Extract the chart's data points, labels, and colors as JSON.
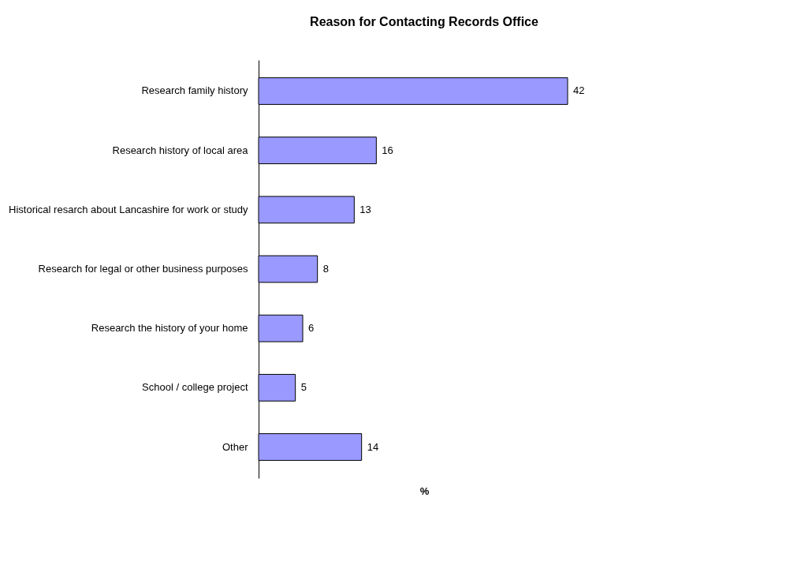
{
  "chart_data": {
    "type": "bar",
    "orientation": "horizontal",
    "title": "Reason for Contacting Records Office",
    "xlabel": "%",
    "categories": [
      "Research family history",
      "Research history of local area",
      "Historical resarch about Lancashire for work or study",
      "Research for legal or other business purposes",
      "Research the history of your home",
      "School / college project",
      "Other"
    ],
    "values": [
      42,
      16,
      13,
      8,
      6,
      5,
      14
    ],
    "color": "#9999ff",
    "data_labels": true,
    "grid": false,
    "tick_labels": "y"
  }
}
